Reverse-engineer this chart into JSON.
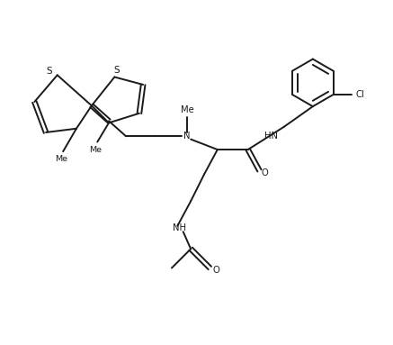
{
  "background": "#ffffff",
  "line_color": "#1a1a1a",
  "line_width": 1.4,
  "fig_width": 4.37,
  "fig_height": 3.83,
  "dpi": 100,
  "xlim": [
    0,
    10
  ],
  "ylim": [
    0,
    9
  ]
}
